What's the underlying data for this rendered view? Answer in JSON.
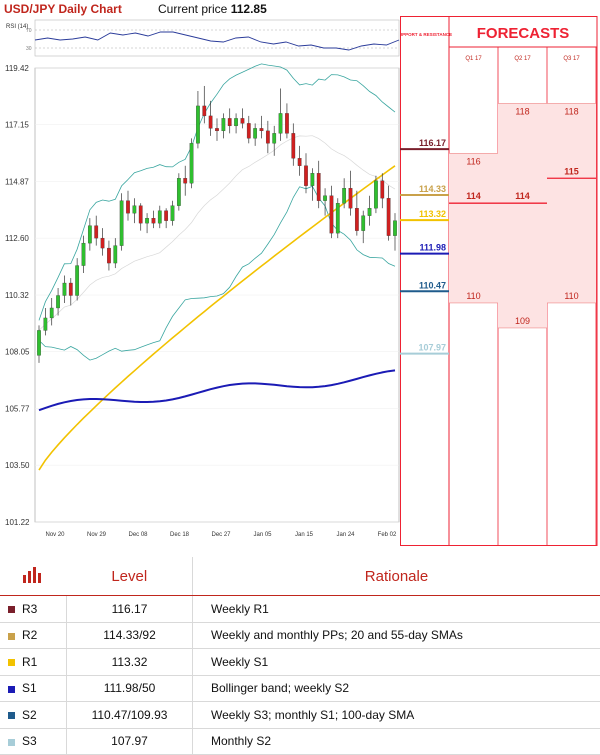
{
  "header": {
    "title": "USD/JPY Daily Chart",
    "price_label": "Current price",
    "price_value": "112.85"
  },
  "rsi": {
    "label": "RSI (14)",
    "tick_high": "70",
    "tick_low": "30"
  },
  "chart_data": [
    {
      "type": "candlestick",
      "title": "USD/JPY Daily Chart",
      "ylim": [
        101.22,
        119.42
      ],
      "y_ticks": [
        "119.42",
        "117.15",
        "114.87",
        "112.60",
        "110.32",
        "108.05",
        "105.77",
        "103.50",
        "101.22"
      ],
      "x_ticks": [
        "Nov 20",
        "Nov 29",
        "Dec 08",
        "Dec 18",
        "Dec 27",
        "Jan 05",
        "Jan 15",
        "Jan 24",
        "Feb 02"
      ],
      "candles": [
        [
          107.9,
          109.1,
          107.6,
          108.9
        ],
        [
          108.9,
          109.8,
          108.7,
          109.4
        ],
        [
          109.4,
          110.2,
          109.1,
          109.8
        ],
        [
          109.8,
          110.6,
          109.5,
          110.3
        ],
        [
          110.3,
          111.1,
          110.0,
          110.8
        ],
        [
          110.8,
          111.0,
          109.9,
          110.3
        ],
        [
          110.3,
          111.8,
          110.1,
          111.5
        ],
        [
          111.5,
          112.7,
          111.2,
          112.4
        ],
        [
          112.4,
          113.4,
          112.1,
          113.1
        ],
        [
          113.1,
          113.5,
          112.3,
          112.6
        ],
        [
          112.6,
          113.0,
          111.9,
          112.2
        ],
        [
          112.2,
          112.5,
          111.3,
          111.6
        ],
        [
          111.6,
          112.6,
          111.4,
          112.3
        ],
        [
          112.3,
          114.4,
          112.1,
          114.1
        ],
        [
          114.1,
          114.5,
          113.3,
          113.6
        ],
        [
          113.6,
          114.2,
          113.2,
          113.9
        ],
        [
          113.9,
          114.0,
          112.9,
          113.2
        ],
        [
          113.2,
          113.6,
          112.8,
          113.4
        ],
        [
          113.4,
          113.7,
          113.0,
          113.2
        ],
        [
          113.2,
          113.9,
          113.0,
          113.7
        ],
        [
          113.7,
          113.8,
          113.0,
          113.3
        ],
        [
          113.3,
          114.1,
          113.1,
          113.9
        ],
        [
          113.9,
          115.2,
          113.7,
          115.0
        ],
        [
          115.0,
          115.5,
          114.3,
          114.8
        ],
        [
          114.8,
          116.6,
          114.6,
          116.4
        ],
        [
          116.4,
          118.5,
          116.2,
          117.9
        ],
        [
          117.9,
          118.7,
          117.2,
          117.5
        ],
        [
          117.5,
          118.1,
          116.7,
          117.0
        ],
        [
          117.0,
          117.4,
          116.5,
          116.9
        ],
        [
          116.9,
          117.6,
          116.6,
          117.4
        ],
        [
          117.4,
          117.8,
          116.8,
          117.1
        ],
        [
          117.1,
          117.6,
          116.8,
          117.4
        ],
        [
          117.4,
          117.8,
          117.0,
          117.2
        ],
        [
          117.2,
          117.5,
          116.4,
          116.6
        ],
        [
          116.6,
          117.2,
          116.3,
          117.0
        ],
        [
          117.0,
          117.5,
          116.6,
          116.9
        ],
        [
          116.9,
          117.3,
          116.0,
          116.4
        ],
        [
          116.4,
          117.1,
          115.9,
          116.8
        ],
        [
          116.8,
          118.6,
          116.5,
          117.6
        ],
        [
          117.6,
          118.0,
          116.6,
          116.8
        ],
        [
          116.8,
          117.2,
          115.5,
          115.8
        ],
        [
          115.8,
          116.3,
          115.1,
          115.5
        ],
        [
          115.5,
          116.0,
          114.4,
          114.7
        ],
        [
          114.7,
          115.4,
          114.1,
          115.2
        ],
        [
          115.2,
          115.7,
          113.8,
          114.1
        ],
        [
          114.1,
          114.6,
          113.5,
          114.3
        ],
        [
          114.3,
          114.7,
          112.6,
          112.8
        ],
        [
          112.8,
          114.2,
          112.6,
          114.0
        ],
        [
          114.0,
          115.0,
          113.8,
          114.6
        ],
        [
          114.6,
          115.3,
          113.5,
          113.8
        ],
        [
          113.8,
          114.5,
          112.7,
          112.9
        ],
        [
          112.9,
          113.7,
          112.4,
          113.5
        ],
        [
          113.5,
          114.3,
          113.1,
          113.8
        ],
        [
          113.8,
          115.1,
          113.6,
          114.9
        ],
        [
          114.9,
          115.2,
          113.8,
          114.2
        ],
        [
          114.2,
          114.7,
          112.5,
          112.7
        ],
        [
          112.7,
          113.6,
          112.1,
          113.3
        ]
      ],
      "sma_200": [
        105.7,
        107.1
      ],
      "sma_55": [
        103.3,
        115.5
      ],
      "bollinger": {
        "upper": "envelope",
        "lower": "envelope",
        "middle": "20-day SMA"
      }
    },
    {
      "type": "table",
      "title": "FORECASTS",
      "support_resistance_label": "SUPPORT & RESISTANCE",
      "levels": [
        {
          "label": "116.17",
          "value": 116.17,
          "color": "#7a1f2b"
        },
        {
          "label": "114.33",
          "value": 114.33,
          "color": "#c9a14a"
        },
        {
          "label": "113.32",
          "value": 113.32,
          "color": "#f2c200"
        },
        {
          "label": "111.98",
          "value": 111.98,
          "color": "#1b1bb5"
        },
        {
          "label": "110.47",
          "value": 110.47,
          "color": "#1f5b8c"
        },
        {
          "label": "107.97",
          "value": 107.97,
          "color": "#a7cdd8"
        }
      ],
      "quarters": [
        {
          "name": "Q1 17",
          "high": "116",
          "mid": "114",
          "low": "110",
          "high_v": 116,
          "mid_v": 114,
          "low_v": 110
        },
        {
          "name": "Q2 17",
          "high": "118",
          "mid": "114",
          "low": "109",
          "high_v": 118,
          "mid_v": 114,
          "low_v": 109
        },
        {
          "name": "Q3 17",
          "high": "118",
          "mid": "115",
          "low": "110",
          "high_v": 118,
          "mid_v": 115,
          "low_v": 110
        }
      ]
    }
  ],
  "table": {
    "col_level": "Level",
    "col_rationale": "Rationale",
    "rows": [
      {
        "name": "R3",
        "level": "116.17",
        "rationale": "Weekly R1",
        "color": "#7a1f2b"
      },
      {
        "name": "R2",
        "level": "114.33/92",
        "rationale": "Weekly and monthly PPs; 20 and 55-day SMAs",
        "color": "#c9a14a"
      },
      {
        "name": "R1",
        "level": "113.32",
        "rationale": "Weekly S1",
        "color": "#f2c200"
      },
      {
        "name": "S1",
        "level": "111.98/50",
        "rationale": "Bollinger band; weekly S2",
        "color": "#1b1bb5"
      },
      {
        "name": "S2",
        "level": "110.47/109.93",
        "rationale": "Weekly S3; monthly S1; 100-day SMA",
        "color": "#1f5b8c"
      },
      {
        "name": "S3",
        "level": "107.97",
        "rationale": "Monthly S2",
        "color": "#a7cdd8"
      }
    ]
  }
}
